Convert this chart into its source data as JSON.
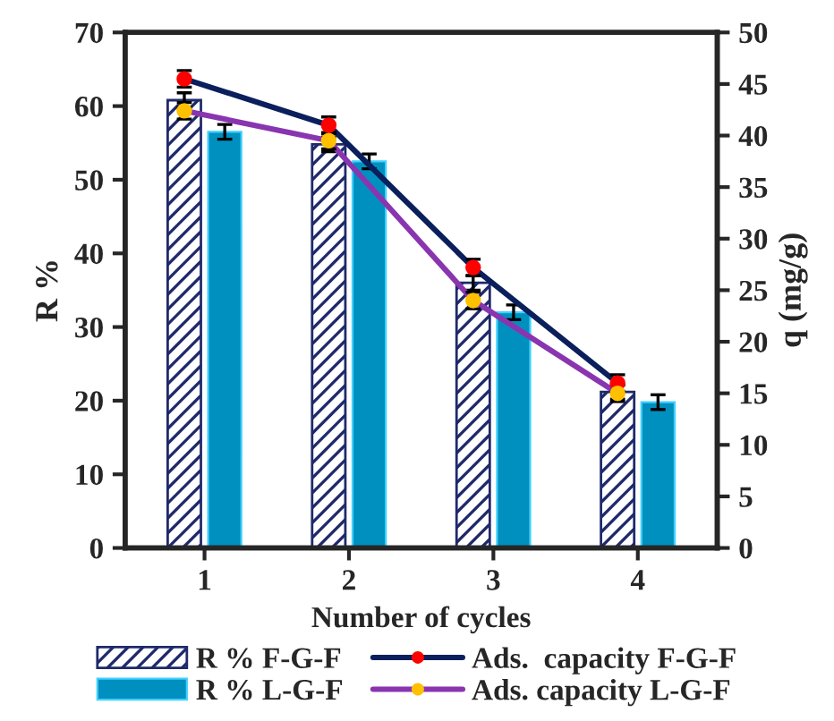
{
  "chart_data": {
    "type": "bar",
    "xlabel": "Number of cycles",
    "ylabel": "R %",
    "y2label": "q (mg/g)",
    "categories": [
      "1",
      "2",
      "3",
      "4"
    ],
    "series": [
      {
        "name": "R % F-G-F",
        "color": "#1f2a6b",
        "values": [
          60.8,
          54.8,
          36,
          21.2
        ],
        "errors": [
          1,
          1,
          1,
          1
        ]
      },
      {
        "name": "R % L-G-F",
        "color": "#0090c0",
        "values": [
          56.5,
          52.5,
          32,
          19.8
        ],
        "errors": [
          1,
          1,
          1,
          1
        ]
      },
      {
        "name": "Ads.  capacity F-G-F",
        "type": "line",
        "axis": "y2",
        "color": "#0a1f5c",
        "colors": [
          "#ff0000",
          "#ff0000",
          "#ff0000",
          "#ff0000"
        ],
        "values": [
          45.5,
          41,
          27.2,
          16
        ],
        "errors": [
          0.8,
          0.8,
          0.8,
          0.8
        ]
      },
      {
        "name": "Ads. capacity L-G-F",
        "type": "line",
        "axis": "y2",
        "color": "#8a35b0",
        "colors": [
          "#ffc000",
          "#ffc000",
          "#ffc000",
          "#ffc000"
        ],
        "values": [
          42.4,
          39.5,
          24,
          15
        ],
        "errors": [
          0.8,
          0.8,
          0.8,
          0.8
        ]
      }
    ],
    "ylim": [
      0,
      70
    ],
    "yticks": [
      0,
      10,
      20,
      30,
      40,
      50,
      60,
      70
    ],
    "y2lim": [
      0,
      50
    ],
    "y2ticks": [
      0,
      5,
      10,
      15,
      20,
      25,
      30,
      35,
      40,
      45,
      50
    ],
    "marker": "circle",
    "line_style": "solid",
    "grid": false,
    "legend": "bottom"
  }
}
